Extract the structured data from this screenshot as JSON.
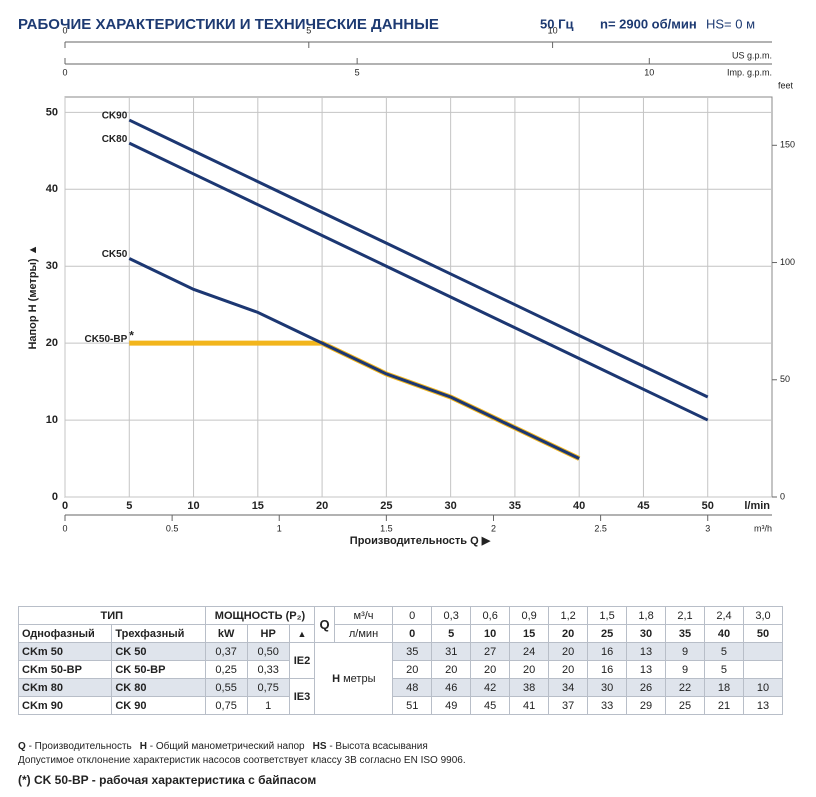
{
  "chart_data": {
    "type": "line",
    "title": "РАБОЧИЕ ХАРАКТЕРИСТИКИ И ТЕХНИЧЕСКИЕ ДАННЫЕ",
    "subtitles": [
      "50 Гц",
      "n= 2900 об/мин",
      "HS= 0 м"
    ],
    "ylabel": "Напор H (метры)",
    "ylabel_arrow": "▲",
    "xlabel": "Производительность Q",
    "xlabel_arrow": "▶",
    "xunit": "l/min",
    "xlim": [
      0,
      55
    ],
    "xticks": [
      0,
      5,
      10,
      15,
      20,
      25,
      30,
      35,
      40,
      45,
      50
    ],
    "ylim": [
      0,
      52
    ],
    "yticks": [
      0,
      10,
      20,
      30,
      40,
      50
    ],
    "grid": true,
    "secondary_axes": {
      "us_gpm": {
        "label": "US g.p.m.",
        "lim": [
          0,
          14.5
        ],
        "ticks": [
          0,
          5,
          10
        ]
      },
      "imp_gpm": {
        "label": "Imp. g.p.m.",
        "lim": [
          0,
          12.1
        ],
        "ticks": [
          0,
          5,
          10
        ]
      },
      "m3h": {
        "label": "m³/h",
        "lim": [
          0,
          3.3
        ],
        "ticks": [
          0,
          0.5,
          1,
          1.5,
          2,
          2.5,
          3
        ]
      },
      "feet": {
        "label": "feet",
        "lim": [
          0,
          170.6
        ],
        "ticks": [
          0,
          50,
          100,
          150
        ]
      }
    },
    "series": [
      {
        "name": "CK90",
        "color": "#1c3772",
        "x": [
          5,
          10,
          15,
          20,
          25,
          30,
          35,
          40,
          50
        ],
        "values": [
          49,
          45,
          41,
          37,
          33,
          29,
          25,
          21,
          13
        ]
      },
      {
        "name": "CK80",
        "color": "#1c3772",
        "x": [
          5,
          10,
          15,
          20,
          25,
          30,
          35,
          40,
          50
        ],
        "values": [
          46,
          42,
          38,
          34,
          30,
          26,
          22,
          18,
          10
        ]
      },
      {
        "name": "CK50",
        "color": "#1c3772",
        "x": [
          5,
          10,
          15,
          20,
          25,
          30,
          35,
          40
        ],
        "values": [
          31,
          27,
          24,
          20,
          16,
          13,
          9,
          5
        ]
      },
      {
        "name": "CK50-BP",
        "note_mark": "*",
        "color": "#f2b51c",
        "x": [
          5,
          10,
          15,
          20,
          25,
          30,
          35,
          40
        ],
        "values": [
          20,
          20,
          20,
          20,
          16,
          13,
          9,
          5
        ]
      }
    ]
  },
  "table": {
    "header": {
      "type": "ТИП",
      "power": "МОЩНОСТЬ (P₂)",
      "q": "Q",
      "unit_m3h": "м³/ч",
      "unit_lmin": "л/мин",
      "single_phase": "Однофазный",
      "three_phase": "Трехфазный",
      "kw": "kW",
      "hp": "HP",
      "ie_arrow": "▲",
      "q_m3h": [
        "0",
        "0,3",
        "0,6",
        "0,9",
        "1,2",
        "1,5",
        "1,8",
        "2,1",
        "2,4",
        "3,0"
      ],
      "q_lmin": [
        "0",
        "5",
        "10",
        "15",
        "20",
        "25",
        "30",
        "35",
        "40",
        "50"
      ]
    },
    "h_label": "H",
    "h_unit": "метры",
    "ie_classes": [
      "IE2",
      "IE3"
    ],
    "rows": [
      {
        "single": "CKm 50",
        "three": "CK 50",
        "kw": "0,37",
        "hp": "0,50",
        "h": [
          "35",
          "31",
          "27",
          "24",
          "20",
          "16",
          "13",
          "9",
          "5"
        ]
      },
      {
        "single": "CKm 50-BP",
        "three": "CK 50-BP",
        "kw": "0,25",
        "hp": "0,33",
        "h": [
          "20",
          "20",
          "20",
          "20",
          "20",
          "16",
          "13",
          "9",
          "5"
        ]
      },
      {
        "single": "CKm 80",
        "three": "CK 80",
        "kw": "0,55",
        "hp": "0,75",
        "h": [
          "48",
          "46",
          "42",
          "38",
          "34",
          "30",
          "26",
          "22",
          "18",
          "10"
        ]
      },
      {
        "single": "CKm 90",
        "three": "CK 90",
        "kw": "0,75",
        "hp": "1",
        "h": [
          "51",
          "49",
          "45",
          "41",
          "37",
          "33",
          "29",
          "25",
          "21",
          "13"
        ]
      }
    ]
  },
  "notes": {
    "terms": [
      {
        "term": "Q",
        "text": "- Производительность"
      },
      {
        "term": "H",
        "text": "- Общий манометрический напор"
      },
      {
        "term": "HS",
        "text": "- Высота всасывания"
      }
    ],
    "tolerance": "Допустимое отклонение характеристик насосов соответствует классу 3B согласно EN ISO 9906.",
    "bypass": "(*) CK 50-BP - рабочая характеристика с байпасом"
  }
}
